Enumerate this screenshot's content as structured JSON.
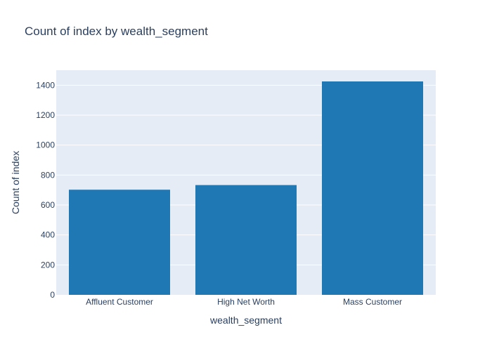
{
  "colors": {
    "plot_background": "#e5ecf6",
    "grid": "#ffffff",
    "bar": "#1f77b4",
    "text": "#2a3f5f",
    "paper": "#ffffff"
  },
  "chart_data": {
    "type": "bar",
    "title": "Count of index by wealth_segment",
    "xlabel": "wealth_segment",
    "ylabel": "Count of index",
    "categories": [
      "Affluent Customer",
      "High Net Worth",
      "Mass Customer"
    ],
    "values": [
      702,
      733,
      1425
    ],
    "ylim": [
      0,
      1500
    ],
    "yticks": [
      0,
      200,
      400,
      600,
      800,
      1000,
      1200,
      1400
    ],
    "grid": true,
    "legend": "none"
  }
}
